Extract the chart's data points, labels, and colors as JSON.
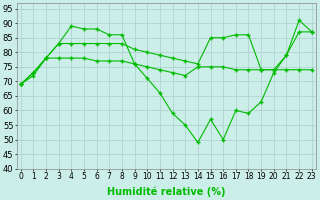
{
  "xlabel": "Humidité relative (%)",
  "background_color": "#cceee8",
  "grid_color": "#aacccc",
  "line_color": "#00bb00",
  "marker": "+",
  "ylim": [
    40,
    97
  ],
  "xlim": [
    -0.3,
    23.3
  ],
  "yticks": [
    40,
    45,
    50,
    55,
    60,
    65,
    70,
    75,
    80,
    85,
    90,
    95
  ],
  "xticks": [
    0,
    1,
    2,
    3,
    4,
    5,
    6,
    7,
    8,
    9,
    10,
    11,
    12,
    13,
    14,
    15,
    16,
    17,
    18,
    19,
    20,
    21,
    22,
    23
  ],
  "series": [
    [
      69,
      73,
      78,
      83,
      89,
      88,
      88,
      86,
      86,
      76,
      71,
      66,
      59,
      55,
      49,
      57,
      50,
      60,
      59,
      63,
      73,
      79,
      91,
      87
    ],
    [
      69,
      73,
      78,
      83,
      83,
      83,
      83,
      83,
      83,
      81,
      80,
      79,
      78,
      77,
      76,
      85,
      85,
      86,
      86,
      74,
      74,
      79,
      87,
      87
    ],
    [
      69,
      72,
      78,
      78,
      78,
      78,
      77,
      77,
      77,
      76,
      75,
      74,
      73,
      72,
      75,
      75,
      75,
      74,
      74,
      74,
      74,
      74,
      74,
      74
    ]
  ]
}
